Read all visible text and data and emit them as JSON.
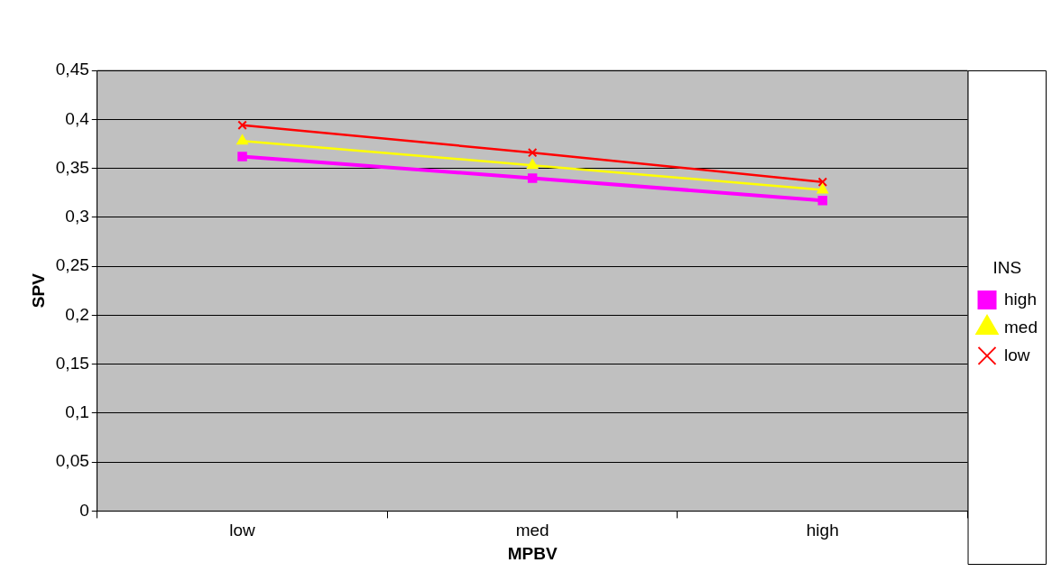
{
  "chart_data": {
    "type": "line",
    "xlabel": "MPBV",
    "ylabel": "SPV",
    "legend_title": "INS",
    "categories": [
      "low",
      "med",
      "high"
    ],
    "series": [
      {
        "name": "high",
        "color": "#ff00ff",
        "values": [
          0.362,
          0.34,
          0.317
        ],
        "marker": "square"
      },
      {
        "name": "med",
        "color": "#ffff00",
        "values": [
          0.378,
          0.353,
          0.328
        ],
        "marker": "triangle"
      },
      {
        "name": "low",
        "color": "#ff0000",
        "values": [
          0.394,
          0.366,
          0.336
        ],
        "marker": "cross"
      }
    ],
    "ylim": [
      0,
      0.45
    ],
    "yticks": [
      {
        "value": 0,
        "label": "0"
      },
      {
        "value": 0.05,
        "label": "0,05"
      },
      {
        "value": 0.1,
        "label": "0,1"
      },
      {
        "value": 0.15,
        "label": "0,15"
      },
      {
        "value": 0.2,
        "label": "0,2"
      },
      {
        "value": 0.25,
        "label": "0,25"
      },
      {
        "value": 0.3,
        "label": "0,3"
      },
      {
        "value": 0.35,
        "label": "0,35"
      },
      {
        "value": 0.4,
        "label": "0,4"
      },
      {
        "value": 0.45,
        "label": "0,45"
      }
    ],
    "grid": "y",
    "legend": "right"
  }
}
